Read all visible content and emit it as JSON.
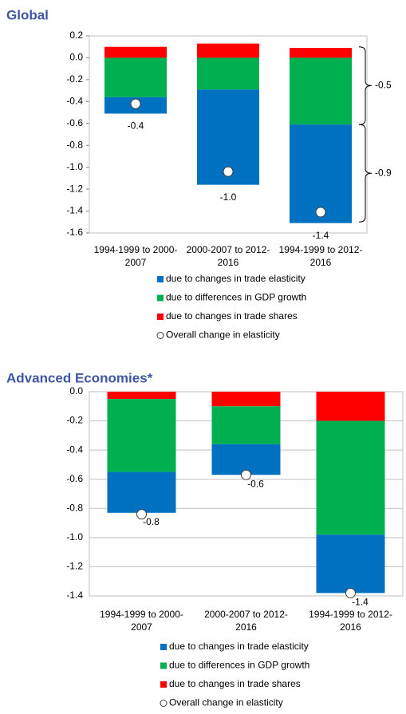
{
  "chart_data": [
    {
      "type": "bar",
      "stacked": true,
      "title": "Global",
      "categories": [
        "1994-1999 to 2000-2007",
        "2000-2007 to 2012-2016",
        "1994-1999 to 2012-2016"
      ],
      "series": [
        {
          "name": "due to changes in trade elasticity",
          "color": "#0070c0",
          "values": [
            -0.15,
            -0.87,
            -0.9
          ]
        },
        {
          "name": "due to differences in GDP growth",
          "color": "#00b050",
          "values": [
            -0.36,
            -0.29,
            -0.61
          ]
        },
        {
          "name": "due to changes in trade shares",
          "color": "#ff0000",
          "values": [
            0.1,
            0.13,
            0.09
          ]
        },
        {
          "name": "Overall change in elasticity",
          "type": "scatter",
          "color": "#ffffff",
          "values": [
            -0.42,
            -1.04,
            -1.41
          ],
          "value_labels": [
            "-0.4",
            "-1.0",
            "-1.4"
          ]
        }
      ],
      "ylim": [
        -1.6,
        0.2
      ],
      "yticks": [
        0.2,
        {
          "value": 0,
          "label": "0.0"
        },
        -0.2,
        -0.4,
        -0.6,
        -0.8,
        {
          "value": -1,
          "label": "-1.0"
        },
        -1.2,
        -1.4,
        -1.6
      ],
      "grid": false,
      "annotations": [
        {
          "text": "-0.5",
          "from": 0.1,
          "to": -0.61
        },
        {
          "text": "-0.9",
          "from": -0.61,
          "to": -1.5
        }
      ]
    },
    {
      "type": "bar",
      "stacked": true,
      "title": "Advanced Economies*",
      "categories": [
        "1994-1999 to 2000-2007",
        "2000-2007 to 2012-2016",
        "1994-1999 to 2012-2016"
      ],
      "series": [
        {
          "name": "due to changes in trade elasticity",
          "color": "#0070c0",
          "values": [
            -0.28,
            -0.21,
            -0.4
          ]
        },
        {
          "name": "due to differences in GDP growth",
          "color": "#00b050",
          "values": [
            -0.5,
            -0.26,
            -0.78
          ]
        },
        {
          "name": "due to changes in trade shares",
          "color": "#ff0000",
          "values": [
            -0.05,
            -0.1,
            -0.2
          ]
        },
        {
          "name": "Overall change in elasticity",
          "type": "scatter",
          "color": "#ffffff",
          "values": [
            -0.84,
            -0.57,
            -1.38
          ],
          "value_labels": [
            "-0.8",
            "-0.6",
            "-1.4"
          ]
        }
      ],
      "ylim": [
        -1.4,
        0
      ],
      "yticks": [
        {
          "value": 0,
          "label": "0.0"
        },
        -0.2,
        -0.4,
        -0.6,
        -0.8,
        {
          "value": -1,
          "label": "-1.0"
        },
        -1.2,
        -1.4
      ],
      "grid": true
    }
  ]
}
